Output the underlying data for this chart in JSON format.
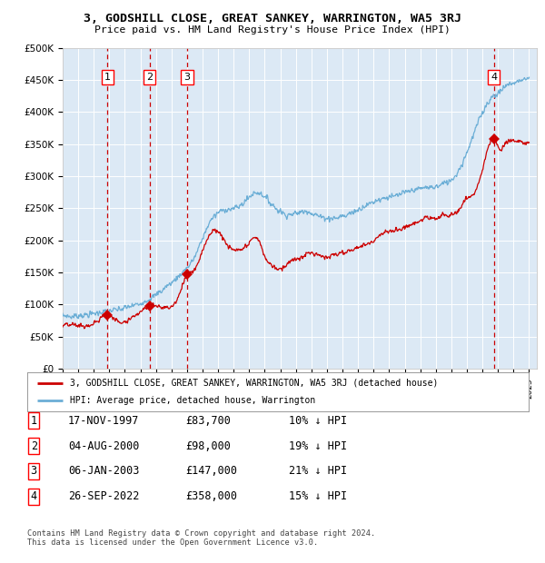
{
  "title": "3, GODSHILL CLOSE, GREAT SANKEY, WARRINGTON, WA5 3RJ",
  "subtitle": "Price paid vs. HM Land Registry's House Price Index (HPI)",
  "background_color": "#dce9f5",
  "plot_bg_color": "#dce9f5",
  "ylim": [
    0,
    500000
  ],
  "xlim_start": 1995.0,
  "xlim_end": 2025.5,
  "yticks": [
    0,
    50000,
    100000,
    150000,
    200000,
    250000,
    300000,
    350000,
    400000,
    450000,
    500000
  ],
  "ytick_labels": [
    "£0",
    "£50K",
    "£100K",
    "£150K",
    "£200K",
    "£250K",
    "£300K",
    "£350K",
    "£400K",
    "£450K",
    "£500K"
  ],
  "xticks": [
    1995,
    1996,
    1997,
    1998,
    1999,
    2000,
    2001,
    2002,
    2003,
    2004,
    2005,
    2006,
    2007,
    2008,
    2009,
    2010,
    2011,
    2012,
    2013,
    2014,
    2015,
    2016,
    2017,
    2018,
    2019,
    2020,
    2021,
    2022,
    2023,
    2024,
    2025
  ],
  "hpi_color": "#6baed6",
  "price_color": "#cc0000",
  "marker_color": "#cc0000",
  "dashed_line_color": "#cc0000",
  "sale_points": [
    {
      "num": 1,
      "date_dec": 1997.88,
      "price": 83700,
      "label": "1"
    },
    {
      "num": 2,
      "date_dec": 2000.58,
      "price": 98000,
      "label": "2"
    },
    {
      "num": 3,
      "date_dec": 2003.01,
      "price": 147000,
      "label": "3"
    },
    {
      "num": 4,
      "date_dec": 2022.73,
      "price": 358000,
      "label": "4"
    }
  ],
  "legend_entries": [
    "3, GODSHILL CLOSE, GREAT SANKEY, WARRINGTON, WA5 3RJ (detached house)",
    "HPI: Average price, detached house, Warrington"
  ],
  "table_data": [
    {
      "num": "1",
      "date": "17-NOV-1997",
      "price": "£83,700",
      "hpi": "10% ↓ HPI"
    },
    {
      "num": "2",
      "date": "04-AUG-2000",
      "price": "£98,000",
      "hpi": "19% ↓ HPI"
    },
    {
      "num": "3",
      "date": "06-JAN-2003",
      "price": "£147,000",
      "hpi": "21% ↓ HPI"
    },
    {
      "num": "4",
      "date": "26-SEP-2022",
      "price": "£358,000",
      "hpi": "15% ↓ HPI"
    }
  ],
  "footer": "Contains HM Land Registry data © Crown copyright and database right 2024.\nThis data is licensed under the Open Government Licence v3.0.",
  "hpi_keypoints": [
    [
      1995.0,
      82000
    ],
    [
      1997.0,
      86000
    ],
    [
      1998.0,
      90000
    ],
    [
      1999.5,
      98000
    ],
    [
      2001.0,
      115000
    ],
    [
      2002.5,
      145000
    ],
    [
      2003.5,
      175000
    ],
    [
      2004.5,
      230000
    ],
    [
      2005.5,
      248000
    ],
    [
      2006.5,
      255000
    ],
    [
      2007.5,
      275000
    ],
    [
      2008.5,
      255000
    ],
    [
      2009.5,
      240000
    ],
    [
      2010.5,
      245000
    ],
    [
      2011.5,
      238000
    ],
    [
      2012.5,
      235000
    ],
    [
      2013.5,
      242000
    ],
    [
      2014.5,
      255000
    ],
    [
      2015.5,
      265000
    ],
    [
      2016.5,
      270000
    ],
    [
      2017.5,
      278000
    ],
    [
      2018.5,
      282000
    ],
    [
      2019.5,
      288000
    ],
    [
      2020.5,
      310000
    ],
    [
      2021.5,
      370000
    ],
    [
      2022.5,
      420000
    ],
    [
      2023.0,
      430000
    ],
    [
      2023.5,
      440000
    ],
    [
      2024.0,
      445000
    ],
    [
      2024.5,
      450000
    ],
    [
      2025.0,
      452000
    ]
  ],
  "price_keypoints": [
    [
      1995.0,
      65000
    ],
    [
      1996.0,
      68000
    ],
    [
      1997.0,
      70000
    ],
    [
      1997.88,
      83700
    ],
    [
      1998.5,
      75000
    ],
    [
      1999.5,
      80000
    ],
    [
      2000.58,
      98000
    ],
    [
      2001.5,
      95000
    ],
    [
      2002.5,
      115000
    ],
    [
      2003.01,
      147000
    ],
    [
      2003.5,
      155000
    ],
    [
      2004.0,
      185000
    ],
    [
      2004.5,
      210000
    ],
    [
      2005.0,
      215000
    ],
    [
      2005.5,
      195000
    ],
    [
      2006.0,
      185000
    ],
    [
      2006.5,
      185000
    ],
    [
      2007.0,
      195000
    ],
    [
      2007.5,
      205000
    ],
    [
      2008.0,
      175000
    ],
    [
      2008.5,
      160000
    ],
    [
      2009.0,
      155000
    ],
    [
      2009.5,
      165000
    ],
    [
      2010.0,
      170000
    ],
    [
      2010.5,
      175000
    ],
    [
      2011.0,
      180000
    ],
    [
      2011.5,
      178000
    ],
    [
      2012.0,
      175000
    ],
    [
      2012.5,
      178000
    ],
    [
      2013.0,
      180000
    ],
    [
      2013.5,
      185000
    ],
    [
      2014.0,
      190000
    ],
    [
      2014.5,
      195000
    ],
    [
      2015.0,
      200000
    ],
    [
      2015.5,
      210000
    ],
    [
      2016.0,
      215000
    ],
    [
      2016.5,
      215000
    ],
    [
      2017.0,
      220000
    ],
    [
      2017.5,
      225000
    ],
    [
      2018.0,
      230000
    ],
    [
      2018.5,
      235000
    ],
    [
      2019.0,
      235000
    ],
    [
      2019.5,
      238000
    ],
    [
      2020.0,
      240000
    ],
    [
      2020.5,
      248000
    ],
    [
      2021.0,
      265000
    ],
    [
      2021.5,
      275000
    ],
    [
      2022.0,
      310000
    ],
    [
      2022.73,
      358000
    ],
    [
      2023.0,
      345000
    ],
    [
      2023.5,
      350000
    ],
    [
      2024.0,
      355000
    ],
    [
      2024.5,
      352000
    ],
    [
      2025.0,
      355000
    ]
  ]
}
